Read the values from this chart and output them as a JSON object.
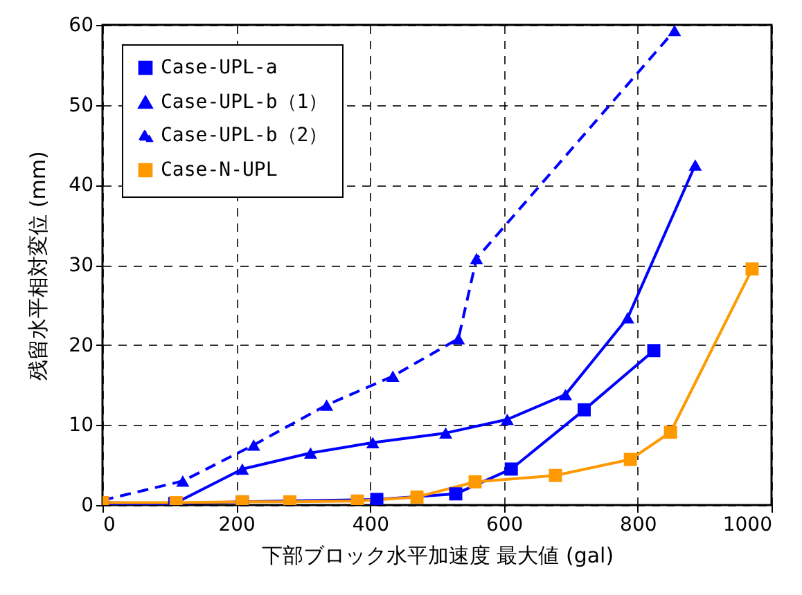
{
  "chart_data": {
    "type": "line",
    "xlabel": "下部ブロック水平加速度 最大値 (gal)",
    "ylabel": "残留水平相対変位 (mm)",
    "xlim": [
      0,
      1000
    ],
    "ylim": [
      0,
      60
    ],
    "xticks": [
      0,
      200,
      400,
      600,
      800,
      1000
    ],
    "yticks": [
      0,
      10,
      20,
      30,
      40,
      50,
      60
    ],
    "grid": true,
    "legend": "top left",
    "series": [
      {
        "name": "Case-UPL-a",
        "color": "#0000ff",
        "marker": "square",
        "line_style": "solid",
        "x": [
          0,
          108,
          209,
          410,
          528,
          611,
          720,
          824
        ],
        "values": [
          0,
          0.2,
          0.4,
          0.7,
          1.4,
          4.5,
          11.9,
          19.3
        ]
      },
      {
        "name": "Case-UPL-b（1）",
        "color": "#0000ff",
        "marker": "triangle",
        "line_style": "solid",
        "x": [
          0,
          108,
          209,
          311,
          404,
          513,
          605,
          692,
          785,
          886
        ],
        "values": [
          0.3,
          0.2,
          4.5,
          6.5,
          7.8,
          9.0,
          10.7,
          13.8,
          23.4,
          42.5
        ]
      },
      {
        "name": "Case-UPL-b（2）",
        "color": "#0000ff",
        "marker": "triangle",
        "line_style": "dashed",
        "x": [
          0,
          120,
          226,
          335,
          434,
          532,
          559,
          855
        ],
        "values": [
          0.6,
          3.0,
          7.5,
          12.5,
          16.1,
          20.8,
          30.8,
          59.3
        ]
      },
      {
        "name": "Case-N-UPL",
        "color": "#ff9900",
        "marker": "square",
        "line_style": "solid",
        "x": [
          0,
          110,
          209,
          280,
          381,
          470,
          557,
          677,
          789,
          849,
          971
        ],
        "values": [
          0.3,
          0.3,
          0.4,
          0.4,
          0.5,
          1.0,
          2.9,
          3.7,
          5.7,
          9.1,
          29.5
        ]
      }
    ]
  }
}
